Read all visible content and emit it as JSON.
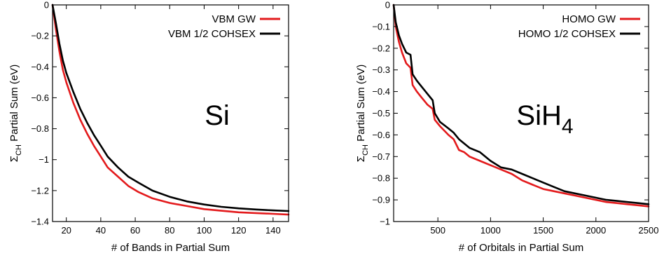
{
  "chart_data": [
    {
      "type": "line",
      "annotation": "Si",
      "xlabel": "# of Bands in Partial Sum",
      "ylabel_prefix": "Σ",
      "ylabel_sub": "CH",
      "ylabel_suffix": " Partial Sum (eV)",
      "xlim": [
        12,
        149
      ],
      "ylim": [
        -1.4,
        0
      ],
      "xticks": [
        20,
        40,
        60,
        80,
        100,
        120,
        140
      ],
      "xtick_labels": [
        "20",
        "40",
        "60",
        "80",
        "100",
        "120",
        "140"
      ],
      "yticks": [
        0,
        -0.2,
        -0.4,
        -0.6,
        -0.8,
        -1,
        -1.2,
        -1.4
      ],
      "ytick_labels": [
        "0",
        "−0.2",
        "−0.4",
        "−0.6",
        "−0.8",
        "−1",
        "−1.2",
        "−1.4"
      ],
      "legend_position": "top-right",
      "series": [
        {
          "name": "VBM GW",
          "color": "#e31a1c",
          "x": [
            12,
            14,
            16,
            18,
            20,
            24,
            28,
            32,
            36,
            40,
            44,
            50,
            56,
            62,
            70,
            80,
            90,
            100,
            110,
            120,
            130,
            140,
            149
          ],
          "y": [
            0,
            -0.16,
            -0.3,
            -0.42,
            -0.5,
            -0.63,
            -0.74,
            -0.83,
            -0.91,
            -0.98,
            -1.05,
            -1.11,
            -1.17,
            -1.21,
            -1.25,
            -1.28,
            -1.3,
            -1.32,
            -1.33,
            -1.34,
            -1.345,
            -1.35,
            -1.355
          ]
        },
        {
          "name": "VBM 1/2 COHSEX",
          "color": "#000000",
          "x": [
            12,
            14,
            16,
            18,
            20,
            24,
            28,
            32,
            36,
            40,
            44,
            50,
            56,
            62,
            70,
            80,
            90,
            100,
            110,
            120,
            130,
            140,
            149
          ],
          "y": [
            0,
            -0.12,
            -0.25,
            -0.36,
            -0.44,
            -0.56,
            -0.67,
            -0.76,
            -0.84,
            -0.91,
            -0.98,
            -1.05,
            -1.11,
            -1.15,
            -1.2,
            -1.24,
            -1.27,
            -1.29,
            -1.305,
            -1.315,
            -1.322,
            -1.328,
            -1.332
          ]
        }
      ]
    },
    {
      "type": "line",
      "annotation": "SiH",
      "annotation_sub": "4",
      "xlabel": "# of Orbitals in Partial Sum",
      "ylabel_prefix": "Σ",
      "ylabel_sub": "CH",
      "ylabel_suffix": " Partial Sum (eV)",
      "xlim": [
        80,
        2500
      ],
      "ylim": [
        -1,
        0
      ],
      "xticks": [
        500,
        1000,
        1500,
        2000,
        2500
      ],
      "xtick_labels": [
        "500",
        "1000",
        "1500",
        "2000",
        "2500"
      ],
      "yticks": [
        0,
        -0.1,
        -0.2,
        -0.3,
        -0.4,
        -0.5,
        -0.6,
        -0.7,
        -0.8,
        -0.9,
        -1
      ],
      "ytick_labels": [
        "0",
        "−0.1",
        "−0.2",
        "−0.3",
        "−0.4",
        "−0.5",
        "−0.6",
        "−0.7",
        "−0.8",
        "−0.9",
        "−1"
      ],
      "legend_position": "top-right",
      "series": [
        {
          "name": "HOMO GW",
          "color": "#e31a1c",
          "x": [
            80,
            100,
            130,
            160,
            200,
            240,
            260,
            300,
            350,
            400,
            450,
            470,
            520,
            600,
            650,
            700,
            750,
            800,
            900,
            1000,
            1100,
            1200,
            1300,
            1400,
            1500,
            1600,
            1700,
            1800,
            1900,
            2000,
            2100,
            2200,
            2300,
            2400,
            2500
          ],
          "y": [
            0,
            -0.1,
            -0.17,
            -0.22,
            -0.27,
            -0.29,
            -0.37,
            -0.4,
            -0.43,
            -0.46,
            -0.48,
            -0.53,
            -0.56,
            -0.6,
            -0.62,
            -0.67,
            -0.68,
            -0.7,
            -0.72,
            -0.74,
            -0.76,
            -0.78,
            -0.81,
            -0.83,
            -0.85,
            -0.86,
            -0.87,
            -0.88,
            -0.89,
            -0.9,
            -0.91,
            -0.915,
            -0.92,
            -0.925,
            -0.93
          ]
        },
        {
          "name": "HOMO 1/2 COHSEX",
          "color": "#000000",
          "x": [
            80,
            100,
            130,
            160,
            200,
            240,
            260,
            300,
            350,
            400,
            450,
            470,
            520,
            600,
            650,
            700,
            750,
            800,
            900,
            1000,
            1100,
            1200,
            1300,
            1400,
            1500,
            1600,
            1700,
            1800,
            1900,
            2000,
            2100,
            2200,
            2300,
            2400,
            2500
          ],
          "y": [
            0,
            -0.08,
            -0.14,
            -0.18,
            -0.22,
            -0.23,
            -0.32,
            -0.35,
            -0.38,
            -0.41,
            -0.44,
            -0.5,
            -0.54,
            -0.57,
            -0.59,
            -0.62,
            -0.64,
            -0.66,
            -0.68,
            -0.72,
            -0.75,
            -0.76,
            -0.78,
            -0.8,
            -0.82,
            -0.84,
            -0.86,
            -0.87,
            -0.88,
            -0.89,
            -0.9,
            -0.905,
            -0.91,
            -0.915,
            -0.92
          ]
        }
      ]
    }
  ]
}
